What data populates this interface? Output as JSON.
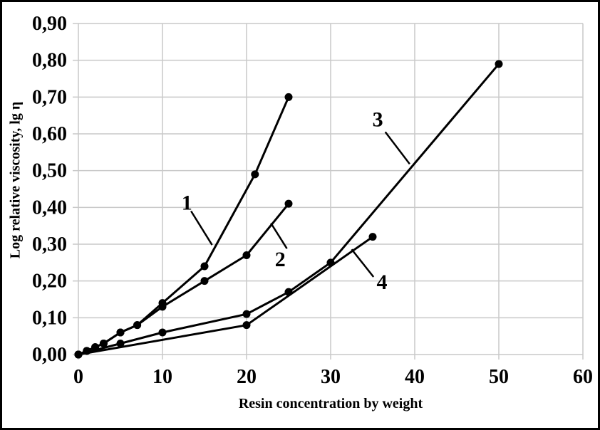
{
  "figure": {
    "background": "#ffffff",
    "border_color": "#000000"
  },
  "chart_data": {
    "type": "line",
    "title": "",
    "xlabel": "Resin concentration by weight",
    "ylabel": "Log relative viscosity, lg η",
    "xlim": [
      0,
      60
    ],
    "ylim": [
      0,
      0.9
    ],
    "grid": true,
    "decimal_separator": "comma",
    "x_ticks": [
      {
        "value": 0,
        "label": "0"
      },
      {
        "value": 10,
        "label": "10"
      },
      {
        "value": 20,
        "label": "20"
      },
      {
        "value": 30,
        "label": "30"
      },
      {
        "value": 40,
        "label": "40"
      },
      {
        "value": 50,
        "label": "50"
      },
      {
        "value": 60,
        "label": "60"
      }
    ],
    "y_ticks": [
      {
        "value": 0.0,
        "label": "0,00"
      },
      {
        "value": 0.1,
        "label": "0,10"
      },
      {
        "value": 0.2,
        "label": "0,20"
      },
      {
        "value": 0.3,
        "label": "0,30"
      },
      {
        "value": 0.4,
        "label": "0,40"
      },
      {
        "value": 0.5,
        "label": "0,50"
      },
      {
        "value": 0.6,
        "label": "0,60"
      },
      {
        "value": 0.7,
        "label": "0,70"
      },
      {
        "value": 0.8,
        "label": "0,80"
      },
      {
        "value": 0.9,
        "label": "0,90"
      }
    ],
    "series": [
      {
        "name": "1",
        "points": [
          [
            0,
            0.0
          ],
          [
            1,
            0.01
          ],
          [
            2,
            0.02
          ],
          [
            3,
            0.03
          ],
          [
            5,
            0.06
          ],
          [
            7,
            0.08
          ],
          [
            10,
            0.14
          ],
          [
            15,
            0.24
          ],
          [
            21,
            0.49
          ],
          [
            25,
            0.7
          ]
        ]
      },
      {
        "name": "2",
        "points": [
          [
            0,
            0.0
          ],
          [
            1,
            0.01
          ],
          [
            2,
            0.02
          ],
          [
            3,
            0.03
          ],
          [
            5,
            0.06
          ],
          [
            7,
            0.08
          ],
          [
            10,
            0.13
          ],
          [
            15,
            0.2
          ],
          [
            20,
            0.27
          ],
          [
            25,
            0.41
          ]
        ]
      },
      {
        "name": "3",
        "points": [
          [
            0,
            0.0
          ],
          [
            5,
            0.03
          ],
          [
            10,
            0.06
          ],
          [
            20,
            0.11
          ],
          [
            25,
            0.17
          ],
          [
            30,
            0.25
          ],
          [
            50,
            0.79
          ]
        ]
      },
      {
        "name": "4",
        "points": [
          [
            0,
            0.0
          ],
          [
            20,
            0.08
          ],
          [
            35,
            0.32
          ]
        ]
      }
    ],
    "annotations": [
      {
        "label": "1",
        "x": 12.9,
        "y": 0.413,
        "leader": [
          [
            13.4,
            0.39
          ],
          [
            15.9,
            0.298
          ]
        ]
      },
      {
        "label": "2",
        "x": 24.0,
        "y": 0.259,
        "leader": [
          [
            22.9,
            0.357
          ],
          [
            24.8,
            0.288
          ]
        ]
      },
      {
        "label": "3",
        "x": 35.6,
        "y": 0.64,
        "leader": [
          [
            36.5,
            0.605
          ],
          [
            39.4,
            0.518
          ]
        ]
      },
      {
        "label": "4",
        "x": 36.1,
        "y": 0.197,
        "leader": [
          [
            32.5,
            0.286
          ],
          [
            35.1,
            0.211
          ]
        ]
      }
    ],
    "style": {
      "series_color": "#000000",
      "grid_color": "#c9c9c9",
      "text_color": "#000000",
      "marker": "filled-circle"
    }
  }
}
